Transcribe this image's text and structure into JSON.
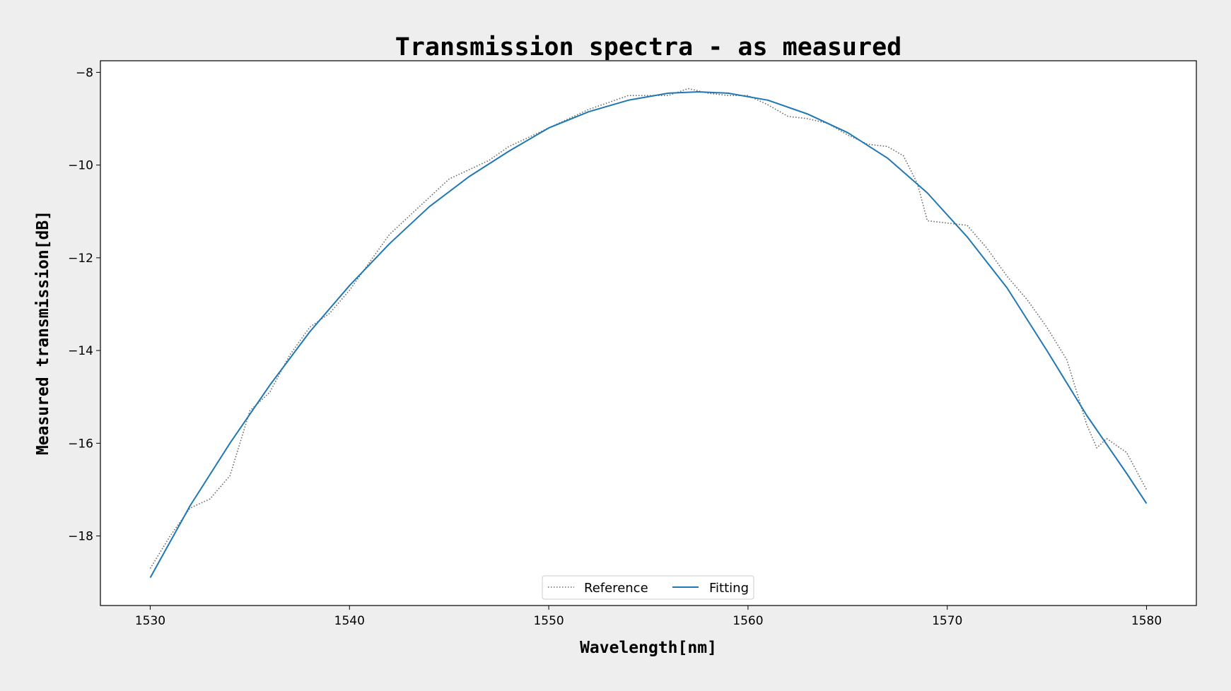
{
  "chart_data": {
    "type": "line",
    "title": "Transmission spectra - as measured",
    "xlabel": "Wavelength[nm]",
    "ylabel": "Measured transmission[dB]",
    "xlim": [
      1527.5,
      1582.5
    ],
    "ylim": [
      -19.5,
      -7.75
    ],
    "xticks": [
      1530,
      1540,
      1550,
      1560,
      1570,
      1580
    ],
    "yticks": [
      -8,
      -10,
      -12,
      -14,
      -16,
      -18
    ],
    "grid": false,
    "legend_position": "bottom-center",
    "series": [
      {
        "name": "Reference",
        "color": "#666666",
        "style": "dotted",
        "x": [
          1530,
          1531,
          1532,
          1533,
          1534,
          1535,
          1536,
          1537,
          1538,
          1539,
          1540,
          1541,
          1542,
          1543,
          1544,
          1545,
          1546,
          1547,
          1548,
          1549,
          1550,
          1551,
          1552,
          1553,
          1554,
          1555,
          1556,
          1557,
          1558,
          1559,
          1560,
          1561,
          1562,
          1563,
          1564,
          1565,
          1566,
          1567,
          1567.8,
          1568.5,
          1569,
          1570,
          1571,
          1572,
          1573,
          1574,
          1575,
          1576,
          1577,
          1577.5,
          1578,
          1579,
          1580
        ],
        "y": [
          -18.7,
          -18.0,
          -17.4,
          -17.2,
          -16.7,
          -15.3,
          -14.9,
          -14.1,
          -13.5,
          -13.2,
          -12.7,
          -12.1,
          -11.5,
          -11.1,
          -10.7,
          -10.3,
          -10.1,
          -9.9,
          -9.6,
          -9.4,
          -9.2,
          -9.0,
          -8.8,
          -8.65,
          -8.5,
          -8.5,
          -8.5,
          -8.35,
          -8.45,
          -8.5,
          -8.5,
          -8.7,
          -8.95,
          -9.0,
          -9.1,
          -9.35,
          -9.55,
          -9.6,
          -9.8,
          -10.4,
          -11.2,
          -11.25,
          -11.3,
          -11.8,
          -12.4,
          -12.9,
          -13.5,
          -14.2,
          -15.6,
          -16.1,
          -15.9,
          -16.2,
          -17.0
        ]
      },
      {
        "name": "Fitting",
        "color": "#1f77b4",
        "style": "solid",
        "x": [
          1530,
          1532,
          1534,
          1536,
          1538,
          1540,
          1542,
          1544,
          1546,
          1548,
          1550,
          1552,
          1554,
          1556,
          1557.5,
          1559,
          1561,
          1563,
          1565,
          1567,
          1569,
          1571,
          1573,
          1575,
          1577,
          1579,
          1580
        ],
        "y": [
          -18.9,
          -17.35,
          -16.0,
          -14.75,
          -13.6,
          -12.6,
          -11.7,
          -10.9,
          -10.25,
          -9.7,
          -9.2,
          -8.85,
          -8.6,
          -8.45,
          -8.42,
          -8.45,
          -8.6,
          -8.9,
          -9.3,
          -9.85,
          -10.6,
          -11.55,
          -12.65,
          -14.0,
          -15.4,
          -16.65,
          -17.3
        ]
      }
    ]
  }
}
